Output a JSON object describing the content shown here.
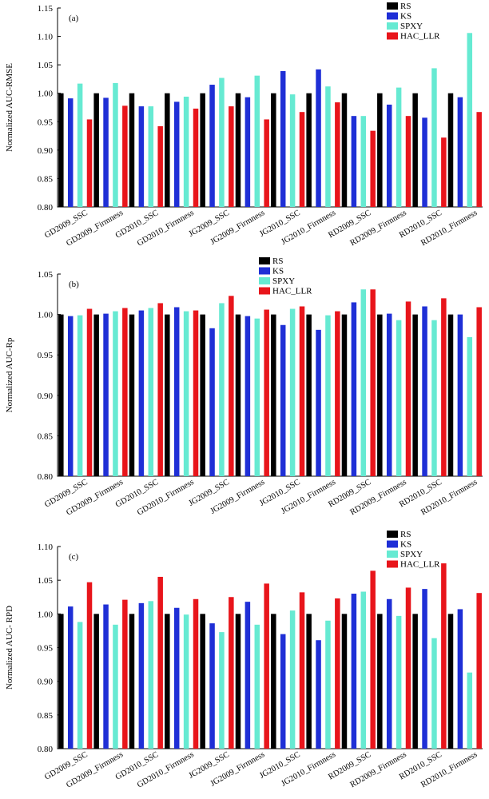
{
  "chart_data": [
    {
      "type": "bar",
      "panel_label": "(a)",
      "ylabel": "Normalized AUC-RMSE",
      "ylim": [
        0.8,
        1.15
      ],
      "yticks": [
        0.8,
        0.85,
        0.9,
        0.95,
        1.0,
        1.05,
        1.1,
        1.15
      ],
      "legend_placement": "top-right",
      "categories": [
        "GD2009_SSC",
        "GD2009_Firmness",
        "GD2010_SSC",
        "GD2010_Firmness",
        "JG2009_SSC",
        "JG2009_Firmness",
        "JG2010_SSC",
        "JG2010_Firmness",
        "RD2009_SSC",
        "RD2009_Firmness",
        "RD2010_SSC",
        "RD2010_Firmness"
      ],
      "series": [
        {
          "name": "RS",
          "color": "#000000",
          "values": [
            1.0,
            1.0,
            1.0,
            1.0,
            1.0,
            1.0,
            1.0,
            1.0,
            1.0,
            1.0,
            1.0,
            1.0
          ]
        },
        {
          "name": "KS",
          "color": "#1f2fd6",
          "values": [
            0.991,
            0.992,
            0.977,
            0.985,
            1.015,
            0.993,
            1.039,
            1.042,
            0.96,
            0.98,
            0.957,
            0.993
          ]
        },
        {
          "name": "SPXY",
          "color": "#66ead2",
          "values": [
            1.017,
            1.018,
            0.977,
            0.994,
            1.027,
            1.031,
            0.998,
            1.012,
            0.96,
            1.01,
            1.044,
            1.106
          ]
        },
        {
          "name": "HAC_LLR",
          "color": "#e8151b",
          "values": [
            0.954,
            0.978,
            0.942,
            0.973,
            0.977,
            0.954,
            0.967,
            0.984,
            0.934,
            0.96,
            0.922,
            0.967
          ]
        }
      ]
    },
    {
      "type": "bar",
      "panel_label": "(b)",
      "ylabel": "Normalized AUC-Rp",
      "ylim": [
        0.8,
        1.05
      ],
      "yticks": [
        0.8,
        0.85,
        0.9,
        0.95,
        1.0,
        1.05
      ],
      "legend_placement": "top-center",
      "categories": [
        "GD2009_SSC",
        "GD2009_Firmness",
        "GD2010_SSC",
        "GD2010_Firmness",
        "JG2009_SSC",
        "JG2009_Firmness",
        "JG2010_SSC",
        "JG2010_Firmness",
        "RD2009_SSC",
        "RD2009_Firmness",
        "RD2010_SSC",
        "RD2010_Firmness"
      ],
      "series": [
        {
          "name": "RS",
          "color": "#000000",
          "values": [
            1.0,
            1.0,
            1.0,
            1.0,
            1.0,
            1.0,
            1.0,
            1.0,
            1.0,
            1.0,
            1.0,
            1.0
          ]
        },
        {
          "name": "KS",
          "color": "#1f2fd6",
          "values": [
            0.998,
            1.001,
            1.005,
            1.009,
            0.983,
            0.998,
            0.987,
            0.981,
            1.015,
            1.001,
            1.01,
            1.0
          ]
        },
        {
          "name": "SPXY",
          "color": "#66ead2",
          "values": [
            0.999,
            1.004,
            1.008,
            1.004,
            1.014,
            0.995,
            1.007,
            0.999,
            1.031,
            0.993,
            0.993,
            0.972
          ]
        },
        {
          "name": "HAC_LLR",
          "color": "#e8151b",
          "values": [
            1.007,
            1.008,
            1.014,
            1.005,
            1.023,
            1.006,
            1.01,
            1.004,
            1.031,
            1.016,
            1.02,
            1.009
          ]
        }
      ]
    },
    {
      "type": "bar",
      "panel_label": "(c)",
      "ylabel": "Normalized AUC- RPD",
      "ylim": [
        0.8,
        1.1
      ],
      "yticks": [
        0.8,
        0.85,
        0.9,
        0.95,
        1.0,
        1.05,
        1.1
      ],
      "legend_placement": "top-right",
      "categories": [
        "GD2009_SSC",
        "GD2009_Firmness",
        "GD2010_SSC",
        "GD2010_Firmness",
        "JG2009_SSC",
        "JG2009_Firmness",
        "JG2010_SSC",
        "JG2010_Firmness",
        "RD2009_SSC",
        "RD2009_Firmness",
        "RD2010_SSC",
        "RD2010_Firmness"
      ],
      "series": [
        {
          "name": "RS",
          "color": "#000000",
          "values": [
            1.0,
            1.0,
            1.0,
            1.0,
            1.0,
            1.0,
            1.0,
            1.0,
            1.0,
            1.0,
            1.0,
            1.0
          ]
        },
        {
          "name": "KS",
          "color": "#1f2fd6",
          "values": [
            1.011,
            1.014,
            1.016,
            1.009,
            0.986,
            1.018,
            0.97,
            0.961,
            1.03,
            1.022,
            1.037,
            1.007
          ]
        },
        {
          "name": "SPXY",
          "color": "#66ead2",
          "values": [
            0.988,
            0.984,
            1.019,
            0.999,
            0.973,
            0.984,
            1.005,
            0.99,
            1.033,
            0.997,
            0.964,
            0.913
          ]
        },
        {
          "name": "HAC_LLR",
          "color": "#e8151b",
          "values": [
            1.047,
            1.021,
            1.055,
            1.022,
            1.025,
            1.045,
            1.032,
            1.023,
            1.064,
            1.039,
            1.075,
            1.031
          ]
        }
      ]
    }
  ]
}
